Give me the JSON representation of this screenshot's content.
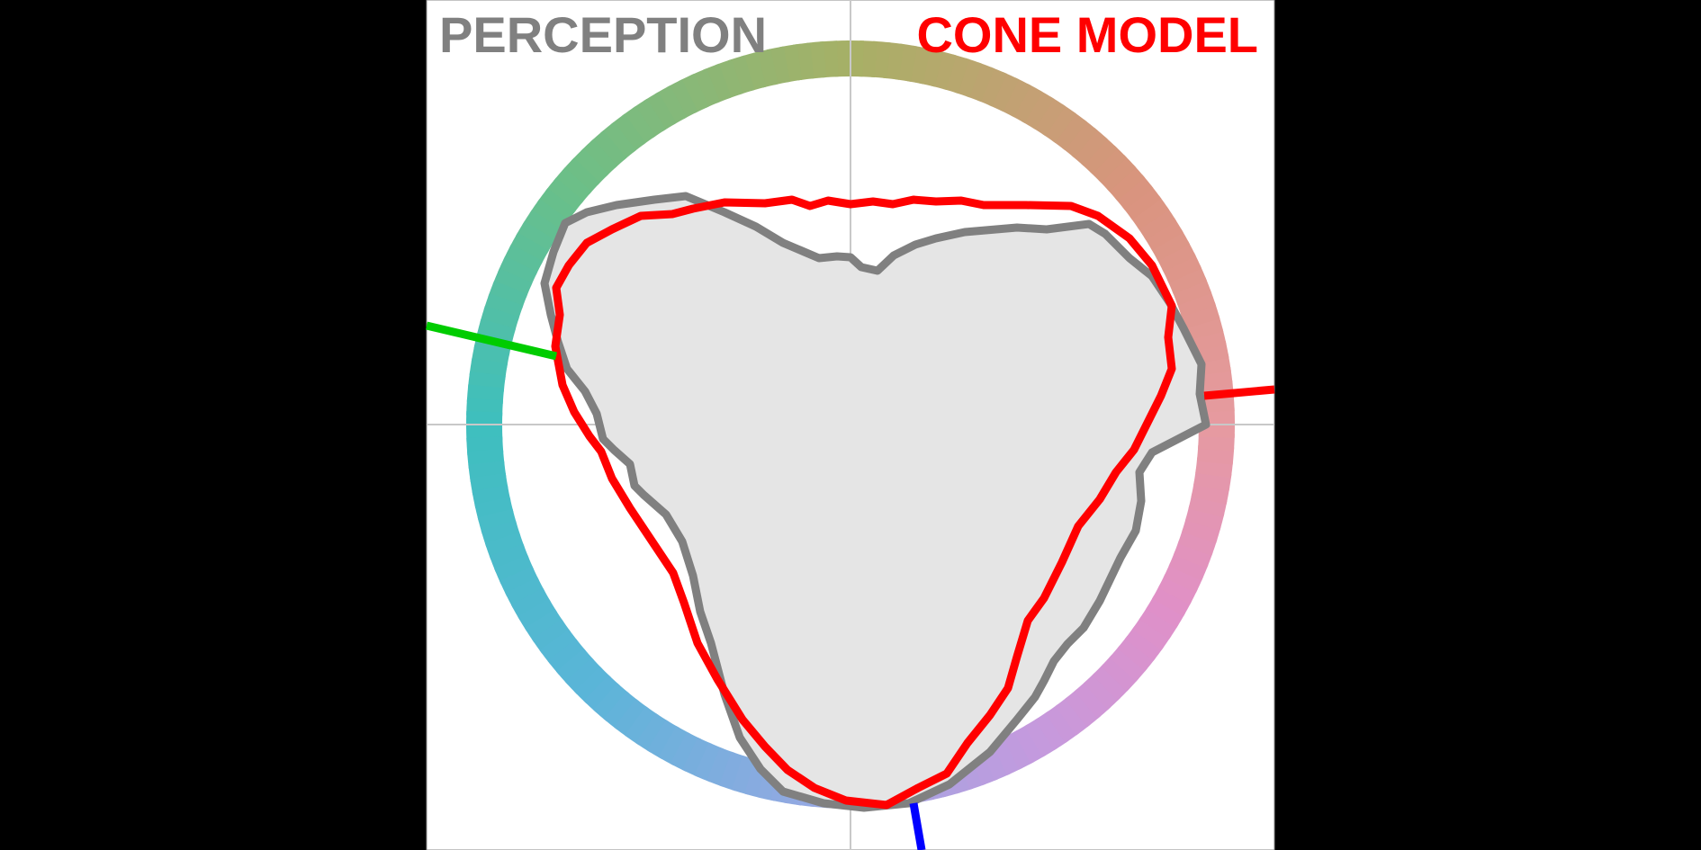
{
  "labels": {
    "perception": "PERCEPTION",
    "cone_model": "CONE MODEL"
  },
  "colors": {
    "background": "#000000",
    "panel": "#ffffff",
    "crosshair": "#c8c8c8",
    "perception": "#808080",
    "perception_fill": "#e5e5e5",
    "cone_model": "#ff0000",
    "l_cone_axis": "#ff0000",
    "m_cone_axis": "#00cc00",
    "s_cone_axis": "#0000ff"
  },
  "hue_ring_stops": [
    {
      "angle_deg": 0,
      "color": "#e69aa0"
    },
    {
      "angle_deg": 40,
      "color": "#d9947e"
    },
    {
      "angle_deg": 90,
      "color": "#a7b066"
    },
    {
      "angle_deg": 140,
      "color": "#6bbf88"
    },
    {
      "angle_deg": 180,
      "color": "#3ebfbe"
    },
    {
      "angle_deg": 225,
      "color": "#5ab5d8"
    },
    {
      "angle_deg": 265,
      "color": "#96a8e2"
    },
    {
      "angle_deg": 300,
      "color": "#c49ade"
    },
    {
      "angle_deg": 330,
      "color": "#e090c8"
    },
    {
      "angle_deg": 360,
      "color": "#e69aa0"
    }
  ],
  "icons": {
    "hue_ring": "color-wheel-ring",
    "perception_curve": "grey-closed-outline",
    "cone_curve": "red-closed-outline"
  }
}
